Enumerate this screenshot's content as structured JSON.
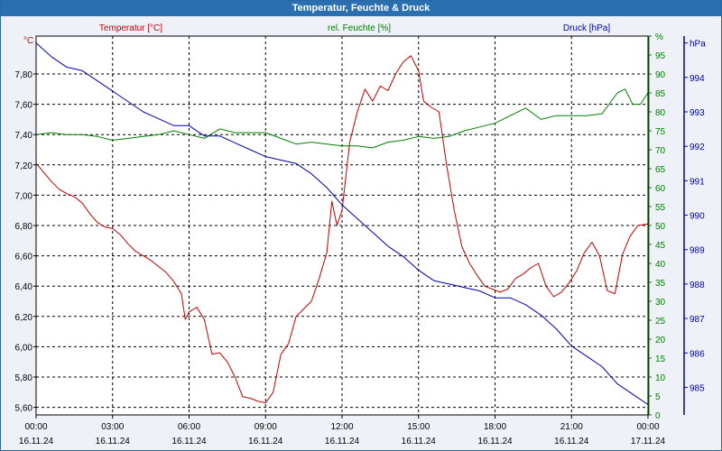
{
  "window": {
    "title": "Temperatur, Feuchte & Druck"
  },
  "colors": {
    "temperature": "#c00000",
    "humidity": "#008000",
    "pressure": "#0000b0",
    "grid": "#000000",
    "axis_text": "#000000",
    "titlebar_bg": "#2a6fb0"
  },
  "chart_data": {
    "type": "line",
    "title": "Temperatur, Feuchte & Druck",
    "grid": true,
    "x": {
      "ticks": [
        {
          "time": "00:00",
          "date": "16.11.24"
        },
        {
          "time": "03:00",
          "date": "16.11.24"
        },
        {
          "time": "06:00",
          "date": "16.11.24"
        },
        {
          "time": "09:00",
          "date": "16.11.24"
        },
        {
          "time": "12:00",
          "date": "16.11.24"
        },
        {
          "time": "15:00",
          "date": "16.11.24"
        },
        {
          "time": "18:00",
          "date": "16.11.24"
        },
        {
          "time": "21:00",
          "date": "16.11.24"
        },
        {
          "time": "00:00",
          "date": "17.11.24"
        }
      ],
      "range_hours": [
        0,
        24
      ]
    },
    "axes": {
      "left": {
        "unit": "°C",
        "range": [
          5.55,
          8.05
        ],
        "tick_labels": [
          "5,60",
          "5,80",
          "6,00",
          "6,20",
          "6,40",
          "6,60",
          "6,80",
          "7,00",
          "7,20",
          "7,40",
          "7,60",
          "7,80"
        ]
      },
      "right_humidity": {
        "unit": "%",
        "range": [
          0,
          100
        ],
        "tick_labels": [
          "0",
          "5",
          "10",
          "15",
          "20",
          "25",
          "30",
          "35",
          "40",
          "45",
          "50",
          "55",
          "60",
          "65",
          "70",
          "75",
          "80",
          "85",
          "90",
          "95",
          "%"
        ]
      },
      "right_pressure": {
        "unit": "hPa",
        "range": [
          984.2,
          995.2
        ],
        "tick_labels": [
          "985",
          "986",
          "987",
          "988",
          "989",
          "990",
          "991",
          "992",
          "993",
          "994",
          "hPa"
        ]
      }
    },
    "series": [
      {
        "name": "Temperatur [°C]",
        "axis": "left",
        "color": "#c00000",
        "x_hours": [
          0,
          0.3,
          0.6,
          0.9,
          1.2,
          1.5,
          1.8,
          2.1,
          2.4,
          2.7,
          3.0,
          3.3,
          3.6,
          3.9,
          4.2,
          4.5,
          4.8,
          5.1,
          5.4,
          5.7,
          5.85,
          6.0,
          6.3,
          6.6,
          6.9,
          7.2,
          7.5,
          7.8,
          8.1,
          8.4,
          8.7,
          9.0,
          9.3,
          9.6,
          9.9,
          10.2,
          10.5,
          10.8,
          11.1,
          11.4,
          11.6,
          11.8,
          12.0,
          12.3,
          12.6,
          12.9,
          13.2,
          13.5,
          13.8,
          14.1,
          14.4,
          14.7,
          15.0,
          15.2,
          15.5,
          15.8,
          16.1,
          16.4,
          16.7,
          17.0,
          17.3,
          17.6,
          17.9,
          18.2,
          18.5,
          18.8,
          19.1,
          19.4,
          19.7,
          20.0,
          20.3,
          20.6,
          20.9,
          21.2,
          21.5,
          21.8,
          22.1,
          22.4,
          22.7,
          23.0,
          23.3,
          23.6,
          24.0
        ],
        "values": [
          7.21,
          7.15,
          7.09,
          7.04,
          7.01,
          6.99,
          6.95,
          6.88,
          6.82,
          6.79,
          6.78,
          6.74,
          6.68,
          6.63,
          6.6,
          6.57,
          6.53,
          6.49,
          6.43,
          6.35,
          6.18,
          6.23,
          6.26,
          6.18,
          5.95,
          5.96,
          5.9,
          5.8,
          5.67,
          5.66,
          5.64,
          5.63,
          5.7,
          5.95,
          6.02,
          6.2,
          6.25,
          6.3,
          6.45,
          6.62,
          6.96,
          6.8,
          6.9,
          7.35,
          7.55,
          7.7,
          7.62,
          7.72,
          7.69,
          7.8,
          7.88,
          7.92,
          7.82,
          7.62,
          7.58,
          7.55,
          7.2,
          6.9,
          6.66,
          6.55,
          6.47,
          6.4,
          6.38,
          6.36,
          6.38,
          6.45,
          6.48,
          6.52,
          6.55,
          6.4,
          6.33,
          6.36,
          6.42,
          6.5,
          6.62,
          6.69,
          6.6,
          6.37,
          6.35,
          6.61,
          6.73,
          6.8,
          6.81
        ]
      },
      {
        "name": "rel. Feuchte [%]",
        "axis": "right_humidity",
        "color": "#008000",
        "x_hours": [
          0,
          0.6,
          1.2,
          1.8,
          2.4,
          3.0,
          3.6,
          4.2,
          4.8,
          5.4,
          6.0,
          6.6,
          7.2,
          7.8,
          8.4,
          9.0,
          9.6,
          10.2,
          10.8,
          11.4,
          12.0,
          12.6,
          13.2,
          13.8,
          14.4,
          15.0,
          15.6,
          16.2,
          16.8,
          17.4,
          18.0,
          18.6,
          19.2,
          19.8,
          20.4,
          21.0,
          21.6,
          22.2,
          22.8,
          23.1,
          23.4,
          23.7,
          24.0
        ],
        "values": [
          74,
          74.5,
          74,
          74,
          73.5,
          72.5,
          73,
          73.5,
          74,
          75,
          74,
          73,
          75.5,
          74.5,
          74.5,
          74.5,
          73,
          71.5,
          72,
          71.5,
          71,
          71,
          70.5,
          72,
          72.5,
          73.5,
          73,
          73.5,
          75,
          76,
          77,
          79,
          81,
          78,
          79,
          79,
          79,
          79.5,
          85,
          86,
          82,
          82,
          85
        ]
      },
      {
        "name": "Druck [hPa]",
        "axis": "right_pressure",
        "color": "#0000b0",
        "x_hours": [
          0,
          0.6,
          1.2,
          1.8,
          2.4,
          3.0,
          3.6,
          4.2,
          4.8,
          5.4,
          6.0,
          6.6,
          7.2,
          7.8,
          8.4,
          9.0,
          9.6,
          10.2,
          10.8,
          11.4,
          12.0,
          12.6,
          13.2,
          13.8,
          14.4,
          15.0,
          15.6,
          16.2,
          16.8,
          17.4,
          18.0,
          18.6,
          19.2,
          19.8,
          20.4,
          21.0,
          21.6,
          22.2,
          22.8,
          23.4,
          24.0
        ],
        "values": [
          995.0,
          994.6,
          994.3,
          994.2,
          993.9,
          993.6,
          993.3,
          993.0,
          992.8,
          992.6,
          992.6,
          992.3,
          992.3,
          992.1,
          991.9,
          991.7,
          991.6,
          991.5,
          991.2,
          990.8,
          990.3,
          989.9,
          989.5,
          989.1,
          988.8,
          988.4,
          988.1,
          988.0,
          987.9,
          987.8,
          987.6,
          987.6,
          987.4,
          987.1,
          986.7,
          986.2,
          985.9,
          985.6,
          985.1,
          984.8,
          984.5
        ]
      }
    ]
  }
}
